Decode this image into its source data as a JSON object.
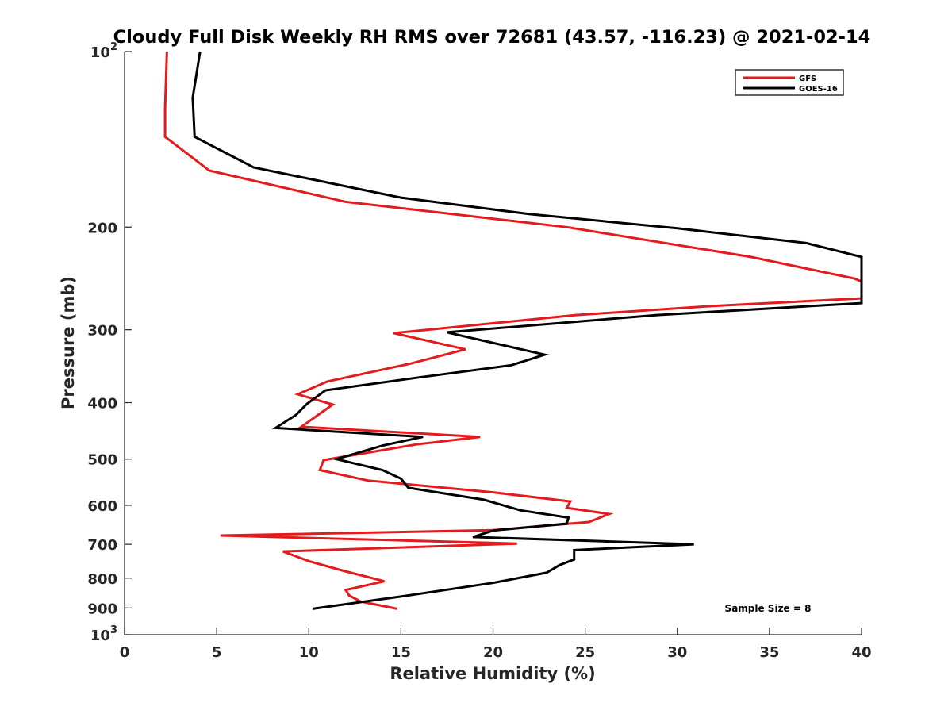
{
  "chart_data": {
    "type": "line",
    "title": "Cloudy Full Disk Weekly RH RMS over 72681 (43.57, -116.23) @ 2021-02-14",
    "xlabel": "Relative Humidity (%)",
    "ylabel": "Pressure (mb)",
    "xlim": [
      0,
      40
    ],
    "ylim": [
      100,
      1000
    ],
    "yscale": "log",
    "y_reversed": true,
    "grid": false,
    "legend_position": "top-right",
    "x_ticks": [
      0,
      5,
      10,
      15,
      20,
      25,
      30,
      35,
      40
    ],
    "x_tick_labels": [
      "0",
      "5",
      "10",
      "15",
      "20",
      "25",
      "30",
      "35",
      "40"
    ],
    "y_ticks": [
      100,
      200,
      300,
      400,
      500,
      600,
      700,
      800,
      900,
      1000
    ],
    "y_tick_labels": [
      {
        "base": "10",
        "exp": "2"
      },
      {
        "base": "200",
        "exp": ""
      },
      {
        "base": "300",
        "exp": ""
      },
      {
        "base": "400",
        "exp": ""
      },
      {
        "base": "500",
        "exp": ""
      },
      {
        "base": "600",
        "exp": ""
      },
      {
        "base": "700",
        "exp": ""
      },
      {
        "base": "800",
        "exp": ""
      },
      {
        "base": "900",
        "exp": ""
      },
      {
        "base": "10",
        "exp": "3"
      }
    ],
    "annotation": "Sample Size = 8",
    "series": [
      {
        "name": "GFS",
        "color": "#e41a1c",
        "points": [
          [
            2.3,
            100
          ],
          [
            2.2,
            125
          ],
          [
            2.2,
            140
          ],
          [
            4.6,
            160
          ],
          [
            12.0,
            181
          ],
          [
            24.0,
            200
          ],
          [
            34.0,
            225
          ],
          [
            39.6,
            245
          ],
          [
            40.0,
            248
          ],
          [
            40.0,
            265
          ],
          [
            32.0,
            273
          ],
          [
            24.5,
            283
          ],
          [
            14.6,
            304
          ],
          [
            18.5,
            324
          ],
          [
            15.5,
            343
          ],
          [
            11.0,
            368
          ],
          [
            9.4,
            387
          ],
          [
            11.3,
            403
          ],
          [
            9.6,
            440
          ],
          [
            19.3,
            458
          ],
          [
            15.8,
            472
          ],
          [
            10.8,
            502
          ],
          [
            10.6,
            522
          ],
          [
            13.2,
            544
          ],
          [
            20.0,
            570
          ],
          [
            24.2,
            591
          ],
          [
            24.0,
            606
          ],
          [
            26.3,
            621
          ],
          [
            25.2,
            641
          ],
          [
            20.0,
            662
          ],
          [
            5.2,
            676
          ],
          [
            21.3,
            698
          ],
          [
            8.6,
            720
          ],
          [
            10.0,
            748
          ],
          [
            11.8,
            776
          ],
          [
            14.1,
            810
          ],
          [
            12.0,
            838
          ],
          [
            12.2,
            857
          ],
          [
            12.8,
            877
          ],
          [
            14.8,
            903
          ]
        ]
      },
      {
        "name": "GOES-16",
        "color": "#000000",
        "points": [
          [
            4.1,
            100
          ],
          [
            3.7,
            120
          ],
          [
            3.8,
            140
          ],
          [
            7.0,
            158
          ],
          [
            15.0,
            178
          ],
          [
            22.0,
            190
          ],
          [
            30.0,
            201
          ],
          [
            37.0,
            213
          ],
          [
            40.0,
            225
          ],
          [
            40.0,
            270
          ],
          [
            28.9,
            283
          ],
          [
            17.5,
            303
          ],
          [
            22.8,
            331
          ],
          [
            21.0,
            345
          ],
          [
            16.0,
            362
          ],
          [
            10.9,
            381
          ],
          [
            9.9,
            402
          ],
          [
            9.3,
            420
          ],
          [
            8.2,
            442
          ],
          [
            16.2,
            458
          ],
          [
            14.0,
            474
          ],
          [
            11.5,
            500
          ],
          [
            14.0,
            522
          ],
          [
            15.0,
            540
          ],
          [
            15.4,
            560
          ],
          [
            19.5,
            587
          ],
          [
            21.5,
            612
          ],
          [
            24.1,
            630
          ],
          [
            24.0,
            645
          ],
          [
            20.0,
            663
          ],
          [
            18.9,
            680
          ],
          [
            30.9,
            700
          ],
          [
            24.4,
            716
          ],
          [
            24.4,
            743
          ],
          [
            23.6,
            760
          ],
          [
            22.9,
            783
          ],
          [
            20.0,
            815
          ],
          [
            15.0,
            860
          ],
          [
            10.2,
            903
          ]
        ]
      }
    ]
  }
}
